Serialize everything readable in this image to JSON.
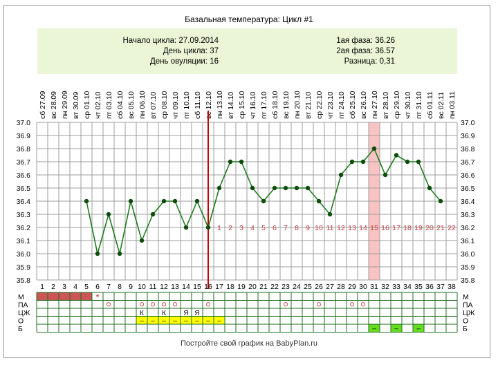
{
  "title": "Базальная температура: Цикл #1",
  "summary": {
    "cycle_start": "Начало цикла: 27.09.2014",
    "cycle_day": "День цикла: 37",
    "ovulation_day": "День овуляции: 16",
    "phase1": "1ая фаза: 36.26",
    "phase2": "2ая фаза: 36.57",
    "difference": "Разница: 0,31"
  },
  "footer": "Постройте свой график на BabyPlan.ru",
  "colors": {
    "line": "#1e7a1e",
    "point": "#0d4d0d",
    "ovulation_line": "#cc0000",
    "highlight": "#f9c3c3",
    "phase2_numbers": "#c04040",
    "menses_fill": "#cc5555",
    "marker_circle": "#d05050",
    "yellow_cell": "#ffff00",
    "green_cell": "#66dd22",
    "summary_bg": "#eaf6d6"
  },
  "chart_data": {
    "type": "line",
    "y_ticks": [
      "37.0",
      "36.9",
      "36.8",
      "36.7",
      "36.6",
      "36.5",
      "36.4",
      "36.3",
      "36.2",
      "36.1",
      "36.0",
      "35.9",
      "35.8"
    ],
    "ylim": [
      35.8,
      37.0
    ],
    "dates": [
      "сб 27.09",
      "вс 28.09",
      "пн 29.09",
      "вт 30.09",
      "ср 01.10",
      "чт 02.10",
      "пт 03.10",
      "сб 04.10",
      "вс 05.10",
      "пн 06.10",
      "вт 07.10",
      "ср 08.10",
      "чт 09.10",
      "пт 10.10",
      "сб 11.10",
      "вс 12.10",
      "пн 13.10",
      "вт 14.10",
      "ср 15.10",
      "чт 16.10",
      "пт 17.10",
      "сб 18.10",
      "вс 19.10",
      "пн 20.10",
      "вт 21.10",
      "ср 22.10",
      "чт 23.10",
      "пт 24.10",
      "сб 25.10",
      "вс 26.10",
      "пн 27.10",
      "вт 28.10",
      "ср 29.10",
      "чт 30.10",
      "пт 31.10",
      "сб 01.11",
      "вс 02.11",
      "пн 03.11"
    ],
    "days": [
      "1",
      "2",
      "3",
      "4",
      "5",
      "6",
      "7",
      "8",
      "9",
      "10",
      "11",
      "12",
      "13",
      "14",
      "15",
      "16",
      "17",
      "18",
      "19",
      "20",
      "21",
      "22",
      "23",
      "24",
      "25",
      "26",
      "27",
      "28",
      "29",
      "30",
      "31",
      "32",
      "33",
      "34",
      "35",
      "36",
      "37",
      "38"
    ],
    "temperatures": [
      null,
      null,
      null,
      null,
      36.4,
      36.0,
      36.3,
      36.0,
      36.4,
      36.1,
      36.3,
      36.4,
      36.4,
      36.2,
      36.4,
      36.2,
      36.5,
      36.7,
      36.7,
      36.5,
      36.4,
      36.5,
      36.5,
      36.5,
      36.5,
      36.4,
      36.3,
      36.6,
      36.7,
      36.7,
      36.8,
      36.6,
      36.75,
      36.7,
      36.7,
      36.5,
      36.4,
      null
    ],
    "ovulation_day": 16,
    "highlight_day": 31,
    "phase2_day_numbers": [
      "1",
      "2",
      "3",
      "4",
      "5",
      "6",
      "7",
      "8",
      "9",
      "10",
      "11",
      "12",
      "13",
      "14",
      "15",
      "16",
      "17",
      "18",
      "19",
      "20",
      "21",
      "22"
    ],
    "grid": true
  },
  "bottom_table": {
    "row_labels": [
      "М",
      "ПА",
      "ЦЖ",
      "О",
      "Б"
    ],
    "menses_days": [
      1,
      2,
      3,
      4,
      5
    ],
    "menses_star_day": 6,
    "pa_circle_days": [
      7,
      10,
      11,
      12,
      13,
      16,
      23,
      26,
      29,
      30
    ],
    "czh_marks": [
      {
        "day": 10,
        "text": "К"
      },
      {
        "day": 12,
        "text": "К"
      },
      {
        "day": 14,
        "text": "Я"
      },
      {
        "day": 15,
        "text": "Я"
      }
    ],
    "o_yellow_days": [
      10,
      11,
      12,
      13,
      14,
      15,
      16,
      17
    ],
    "o_mark": "–",
    "b_green_days": [
      31,
      33,
      35
    ],
    "b_mark": "–"
  }
}
